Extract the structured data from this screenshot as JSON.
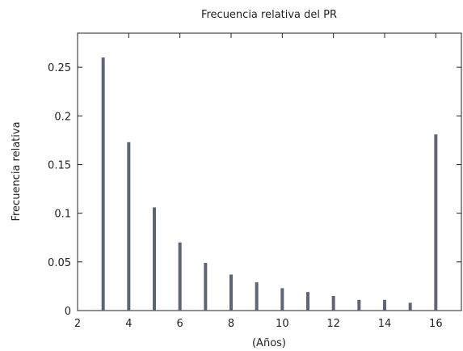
{
  "chart_data": {
    "type": "bar",
    "title": "Frecuencia relativa del PR",
    "xlabel": "(Años)",
    "ylabel": "Frecuencia relativa",
    "x": [
      3,
      4,
      5,
      6,
      7,
      8,
      9,
      10,
      11,
      12,
      13,
      14,
      15,
      16
    ],
    "values": [
      0.26,
      0.173,
      0.106,
      0.07,
      0.049,
      0.037,
      0.029,
      0.023,
      0.019,
      0.015,
      0.011,
      0.011,
      0.008,
      0.181
    ],
    "xlim": [
      2,
      17
    ],
    "ylim": [
      0,
      0.285
    ],
    "xticks": [
      2,
      4,
      6,
      8,
      10,
      12,
      14,
      16
    ],
    "xtick_labels": [
      "2",
      "4",
      "6",
      "8",
      "10",
      "12",
      "14",
      "16"
    ],
    "yticks": [
      0,
      0.05,
      0.1,
      0.15,
      0.2,
      0.25
    ],
    "ytick_labels": [
      "0",
      "0.05",
      "0.1",
      "0.15",
      "0.2",
      "0.25"
    ],
    "grid": false,
    "legend": "none",
    "bar_color": "#5d6577"
  }
}
